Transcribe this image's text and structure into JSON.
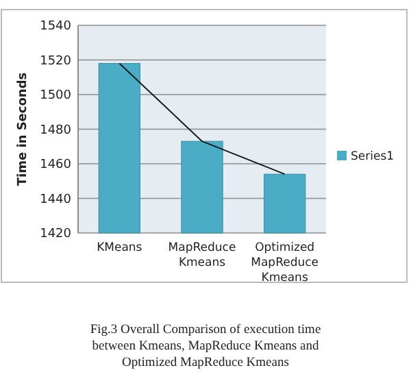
{
  "chart_data": {
    "type": "bar",
    "ylabel": "Time in Seconds",
    "categories": [
      "KMeans",
      "MapReduce Kmeans",
      "Optimized MapReduce Kmeans"
    ],
    "series": [
      {
        "name": "Series1",
        "color": "#4bacc6",
        "values": [
          1518,
          1473,
          1454
        ]
      },
      {
        "type": "line",
        "color": "#1a1a1a",
        "values": [
          1518,
          1473,
          1454
        ]
      }
    ],
    "ylim": [
      1420,
      1540
    ],
    "yticks": [
      1420,
      1440,
      1460,
      1480,
      1500,
      1520,
      1540
    ],
    "grid": "y",
    "legend": "right",
    "marker": "none",
    "annotations": [
      "Fig.3 Overall Comparison of execution time between Kmeans, MapReduce Kmeans and Optimized MapReduce Kmeans"
    ]
  }
}
